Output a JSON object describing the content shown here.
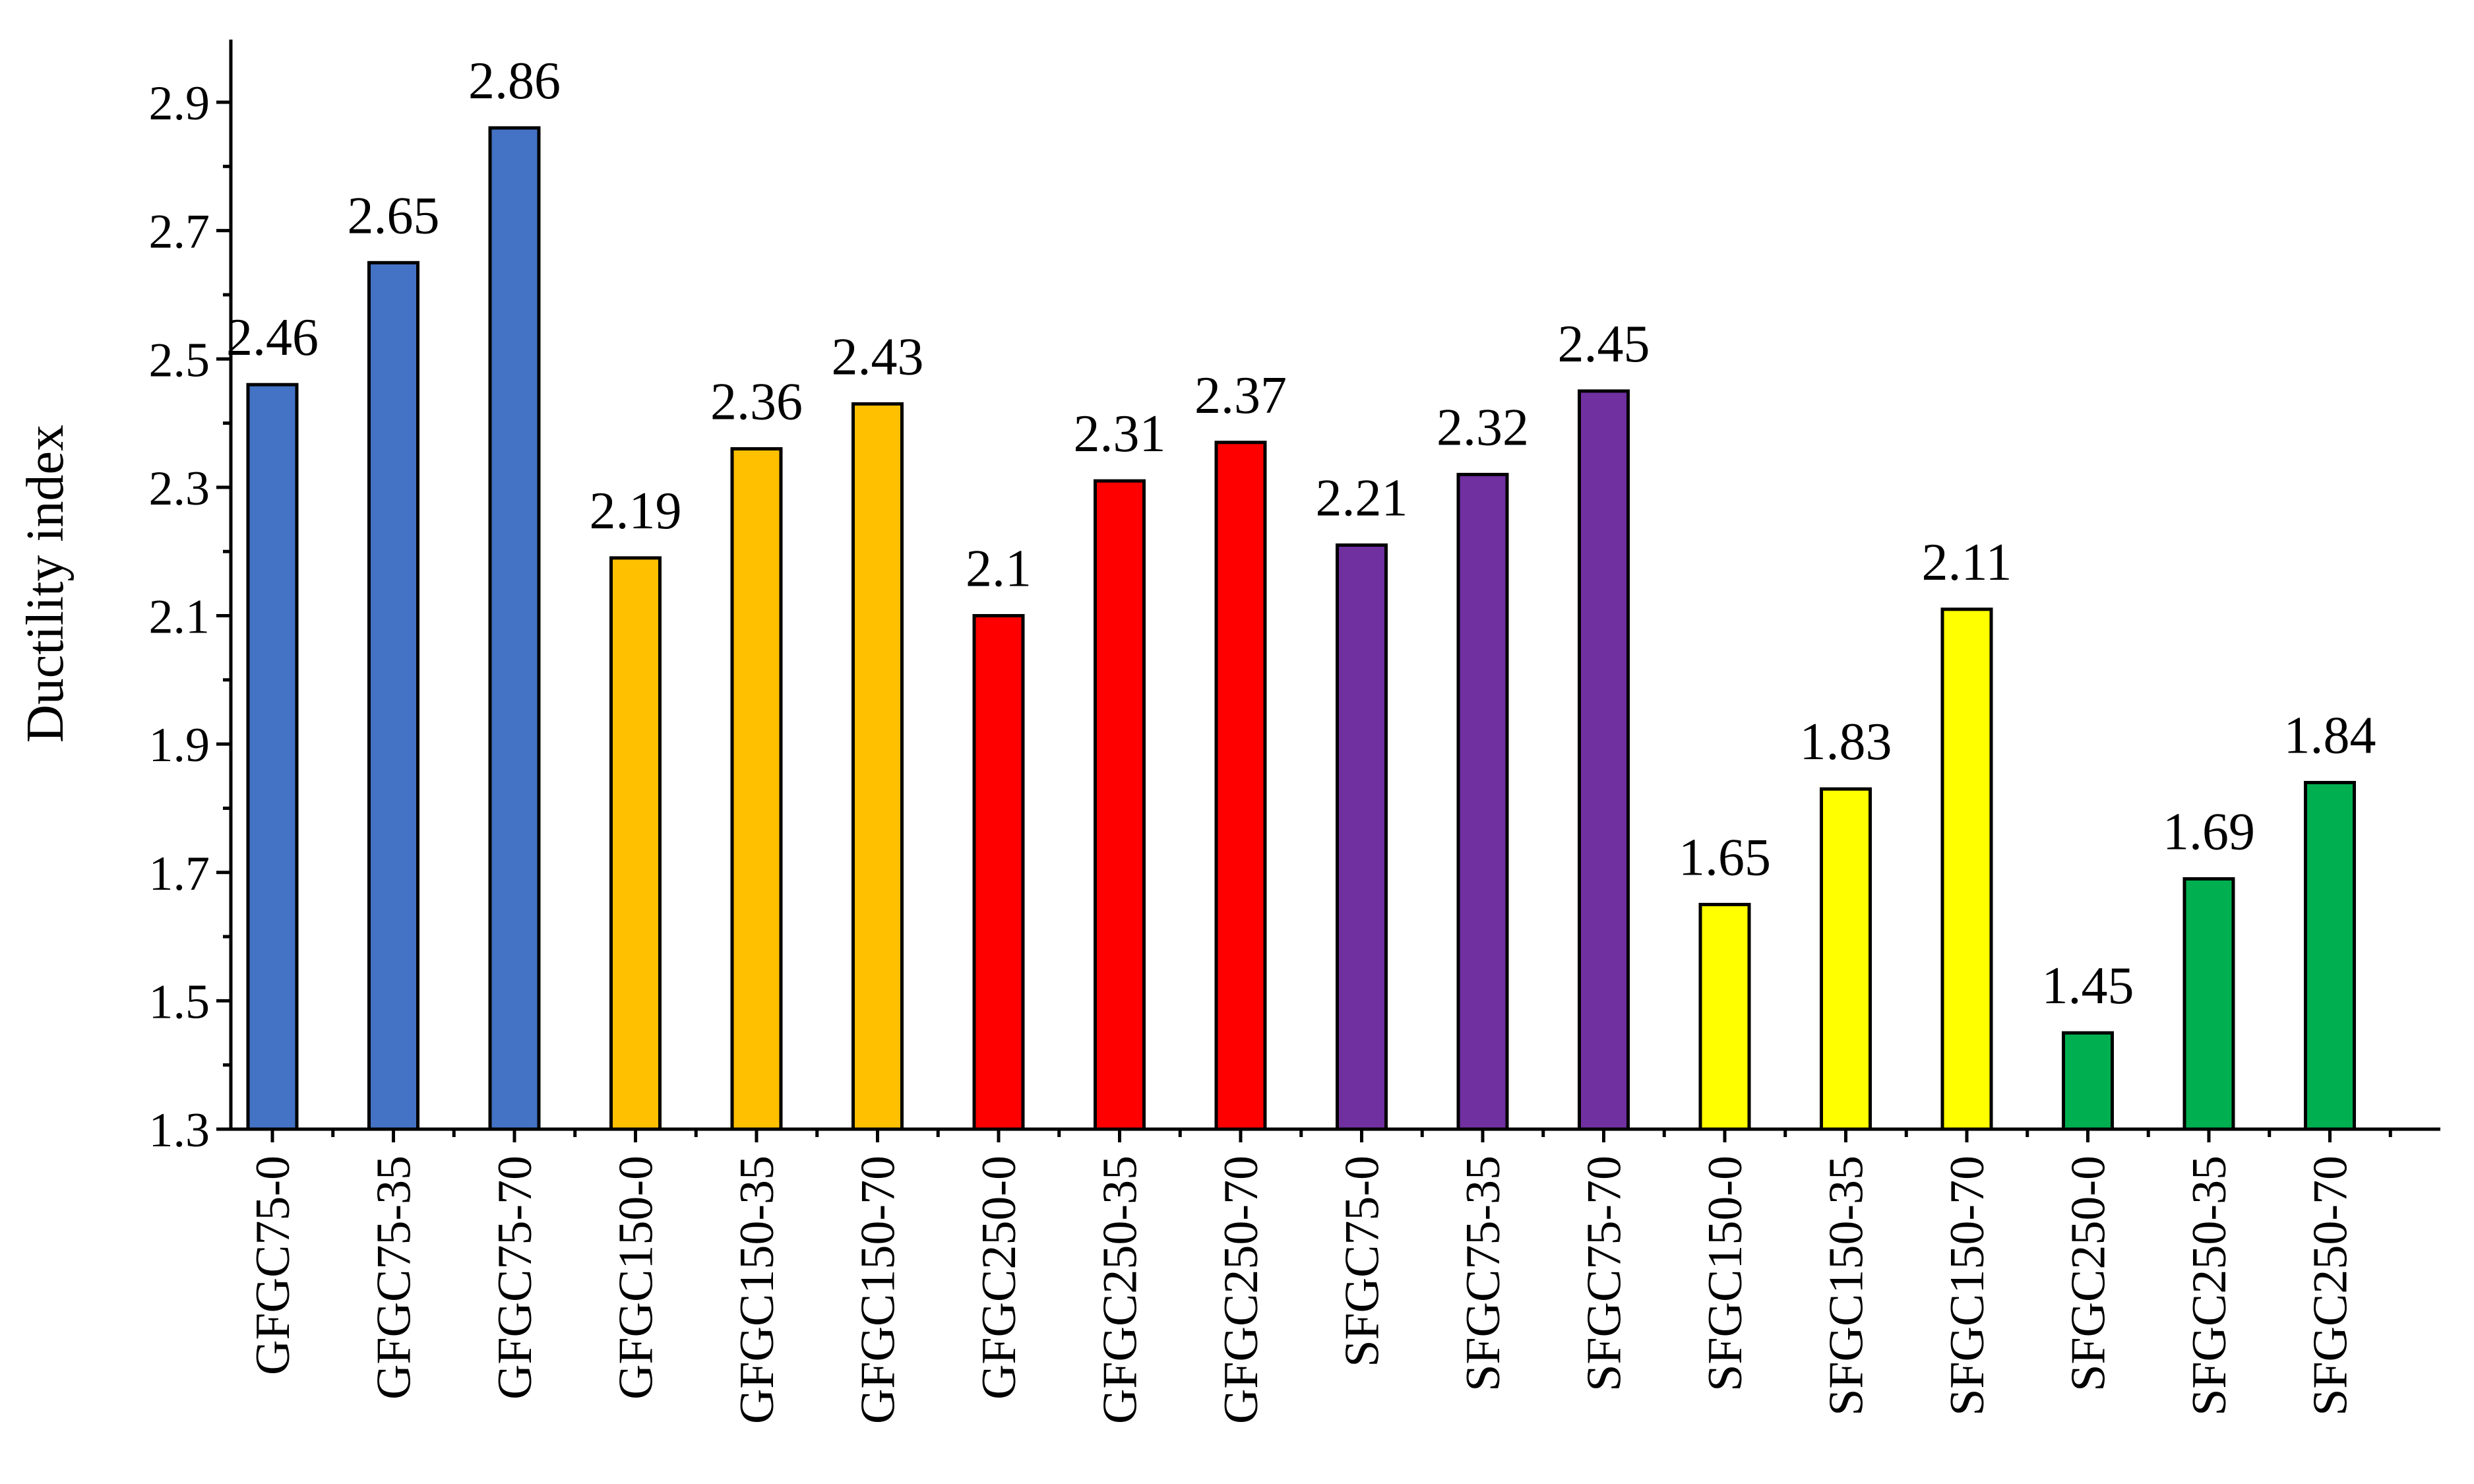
{
  "chart_data": {
    "type": "bar",
    "title": "",
    "xlabel": "",
    "ylabel": "Ductility index",
    "ylim": [
      1.3,
      3.0
    ],
    "yticks": [
      1.3,
      1.5,
      1.7,
      1.9,
      2.1,
      2.3,
      2.5,
      2.7,
      2.9
    ],
    "ytick_labels": [
      "1.3",
      "1.5",
      "1.7",
      "1.9",
      "2.1",
      "2.3",
      "2.5",
      "2.7",
      "2.9"
    ],
    "grid": false,
    "legend": "none",
    "categories": [
      "GFGC75-0",
      "GFGC75-35",
      "GFGC75-70",
      "GFGC150-0",
      "GFGC150-35",
      "GFGC150-70",
      "GFGC250-0",
      "GFGC250-35",
      "GFGC250-70",
      "SFGC75-0",
      "SFGC75-35",
      "SFGC75-70",
      "SFGC150-0",
      "SFGC150-35",
      "SFGC150-70",
      "SFGC250-0",
      "SFGC250-35",
      "SFGC250-70"
    ],
    "values": [
      2.46,
      2.65,
      2.86,
      2.19,
      2.36,
      2.43,
      2.1,
      2.31,
      2.37,
      2.21,
      2.32,
      2.45,
      1.65,
      1.83,
      2.11,
      1.45,
      1.69,
      1.84
    ],
    "value_labels": [
      "2.46",
      "2.65",
      "2.86",
      "2.19",
      "2.36",
      "2.43",
      "2.1",
      "2.31",
      "2.37",
      "2.21",
      "2.32",
      "2.45",
      "1.65",
      "1.83",
      "2.11",
      "1.45",
      "1.69",
      "1.84"
    ],
    "bar_colors": [
      "#4472C4",
      "#4472C4",
      "#4472C4",
      "#FFC000",
      "#FFC000",
      "#FFC000",
      "#FF0000",
      "#FF0000",
      "#FF0000",
      "#7030A0",
      "#7030A0",
      "#7030A0",
      "#FFFF00",
      "#FFFF00",
      "#FFFF00",
      "#00B050",
      "#00B050",
      "#00B050"
    ]
  }
}
